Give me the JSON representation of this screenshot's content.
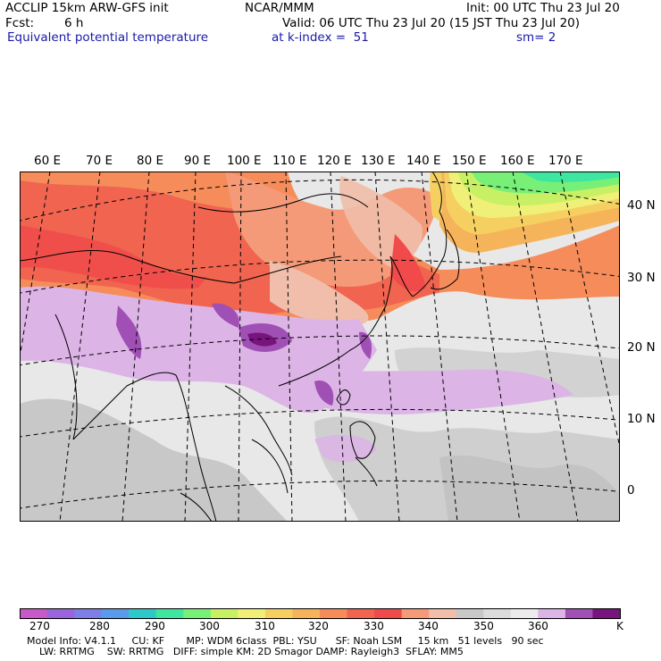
{
  "header": {
    "line1_left": "ACCLIP 15km ARW-GFS init",
    "line1_center": "NCAR/MMM",
    "line1_right": "Init: 00 UTC Thu 23 Jul 20",
    "fcst_label": "Fcst:",
    "fcst_value": "6 h",
    "valid": "Valid: 06 UTC Thu 23 Jul 20 (15 JST Thu 23 Jul 20)",
    "field_name": "Equivalent potential temperature",
    "level": "at k-index =  51",
    "smoothing": "sm= 2"
  },
  "map": {
    "longitude_labels": [
      "60 E",
      "70 E",
      "80 E",
      "90 E",
      "100 E",
      "110 E",
      "120 E",
      "130 E",
      "140 E",
      "150 E",
      "160 E",
      "170 E"
    ],
    "latitude_labels": [
      "40 N",
      "30 N",
      "20 N",
      "10 N",
      "0"
    ]
  },
  "colorbar": {
    "unit": "K",
    "tick_labels": [
      "270",
      "280",
      "290",
      "300",
      "310",
      "320",
      "330",
      "340",
      "350",
      "360"
    ],
    "colors": [
      "#c85ac8",
      "#9a64dc",
      "#7e7ee8",
      "#5a9aea",
      "#2ec8c8",
      "#3ee6a0",
      "#78f078",
      "#c8f064",
      "#f0f078",
      "#f5d060",
      "#f5b45a",
      "#f58c5a",
      "#f06450",
      "#f04a4a",
      "#f59a78",
      "#f0beaa",
      "#c8c8c8",
      "#dcdcdc",
      "#ececec",
      "#dcb4e6",
      "#a050b4",
      "#78147d"
    ]
  },
  "model_info": {
    "line1": "Model Info: V4.1.1     CU: KF       MP: WDM 6class  PBL: YSU      SF: Noah LSM     15 km   51 levels   90 sec",
    "line2": "LW: RRTMG    SW: RRTMG   DIFF: simple KM: 2D Smagor DAMP: Rayleigh3  SFLAY: MM5"
  }
}
